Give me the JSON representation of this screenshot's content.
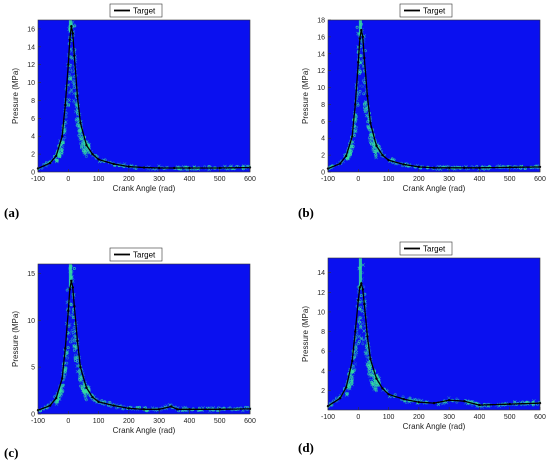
{
  "chart_data": [
    {
      "type": "scatter",
      "panel": "(a)",
      "xlabel": "Crank Angle (rad)",
      "ylabel": "Pressure (MPa)",
      "xlim": [
        -100,
        600
      ],
      "ylim": [
        0,
        17
      ],
      "xticks": [
        -100,
        0,
        100,
        200,
        300,
        400,
        500,
        600
      ],
      "yticks": [
        0,
        2,
        4,
        6,
        8,
        10,
        12,
        14,
        16
      ],
      "legend": {
        "entries": [
          "Target"
        ],
        "placement": "top-center"
      },
      "series": [
        {
          "name": "Target",
          "x": [
            -100,
            -60,
            -40,
            -20,
            -10,
            0,
            5,
            10,
            15,
            20,
            30,
            40,
            60,
            80,
            100,
            150,
            200,
            250,
            300,
            350,
            400,
            500,
            600
          ],
          "y": [
            0.4,
            1.0,
            1.8,
            4.0,
            7.5,
            12.0,
            14.8,
            16.3,
            15.5,
            13.0,
            8.5,
            5.5,
            3.0,
            2.0,
            1.4,
            0.9,
            0.6,
            0.5,
            0.45,
            0.45,
            0.45,
            0.45,
            0.5
          ]
        }
      ],
      "colors": {
        "background": "#0a10f0",
        "samples": "#33e0a0",
        "target": "#000000"
      }
    },
    {
      "type": "scatter",
      "panel": "(b)",
      "xlabel": "Crank Angle (rad)",
      "ylabel": "Pressure (MPa)",
      "xlim": [
        -100,
        600
      ],
      "ylim": [
        0,
        18
      ],
      "xticks": [
        -100,
        0,
        100,
        200,
        300,
        400,
        500,
        600
      ],
      "yticks": [
        0,
        2,
        4,
        6,
        8,
        10,
        12,
        14,
        16,
        18
      ],
      "legend": {
        "entries": [
          "Target"
        ],
        "placement": "top-center"
      },
      "series": [
        {
          "name": "Target",
          "x": [
            -100,
            -60,
            -40,
            -20,
            -10,
            0,
            5,
            10,
            15,
            20,
            30,
            40,
            60,
            80,
            100,
            150,
            200,
            250,
            300,
            350,
            400,
            500,
            600
          ],
          "y": [
            0.4,
            1.0,
            1.9,
            4.2,
            8.0,
            13.0,
            15.8,
            16.8,
            16.0,
            13.5,
            9.0,
            5.8,
            3.1,
            2.0,
            1.4,
            0.9,
            0.6,
            0.5,
            0.5,
            0.5,
            0.5,
            0.55,
            0.6
          ]
        }
      ],
      "colors": {
        "background": "#0a10f0",
        "samples": "#33e0a0",
        "target": "#000000"
      }
    },
    {
      "type": "scatter",
      "panel": "(c)",
      "xlabel": "Crank Angle (rad)",
      "ylabel": "Pressure (MPa)",
      "xlim": [
        -100,
        600
      ],
      "ylim": [
        0,
        16
      ],
      "xticks": [
        -100,
        0,
        100,
        200,
        300,
        400,
        500,
        600
      ],
      "yticks": [
        0,
        5,
        10,
        15
      ],
      "legend": {
        "entries": [
          "Target"
        ],
        "placement": "top-center"
      },
      "series": [
        {
          "name": "Target",
          "x": [
            -100,
            -60,
            -40,
            -20,
            -10,
            0,
            5,
            10,
            15,
            20,
            30,
            40,
            60,
            80,
            100,
            150,
            200,
            250,
            300,
            340,
            360,
            400,
            500,
            600
          ],
          "y": [
            0.4,
            0.9,
            1.7,
            3.8,
            7.0,
            11.0,
            13.3,
            14.2,
            13.5,
            11.5,
            7.8,
            5.0,
            2.8,
            1.8,
            1.3,
            0.9,
            0.6,
            0.5,
            0.5,
            0.8,
            0.5,
            0.5,
            0.5,
            0.55
          ]
        }
      ],
      "colors": {
        "background": "#0a10f0",
        "samples": "#33e0a0",
        "target": "#000000"
      }
    },
    {
      "type": "scatter",
      "panel": "(d)",
      "xlabel": "Crank Angle (rad)",
      "ylabel": "Pressure (MPa)",
      "xlim": [
        -100,
        600
      ],
      "ylim": [
        0,
        15.5
      ],
      "xticks": [
        -100,
        0,
        100,
        200,
        300,
        400,
        500,
        600
      ],
      "yticks": [
        2,
        4,
        6,
        8,
        10,
        12,
        14
      ],
      "legend": {
        "entries": [
          "Target"
        ],
        "placement": "top-center"
      },
      "series": [
        {
          "name": "Target",
          "x": [
            -100,
            -60,
            -40,
            -20,
            -10,
            0,
            5,
            10,
            15,
            20,
            30,
            40,
            60,
            80,
            100,
            150,
            200,
            250,
            300,
            350,
            400,
            500,
            600
          ],
          "y": [
            0.4,
            1.2,
            2.3,
            5.0,
            8.0,
            11.2,
            12.5,
            12.9,
            12.3,
            10.8,
            7.5,
            5.2,
            3.2,
            2.2,
            1.6,
            1.1,
            0.8,
            0.7,
            1.0,
            0.9,
            0.5,
            0.6,
            0.7
          ]
        }
      ],
      "colors": {
        "background": "#0a10f0",
        "samples": "#33e0a0",
        "target": "#000000"
      }
    }
  ]
}
